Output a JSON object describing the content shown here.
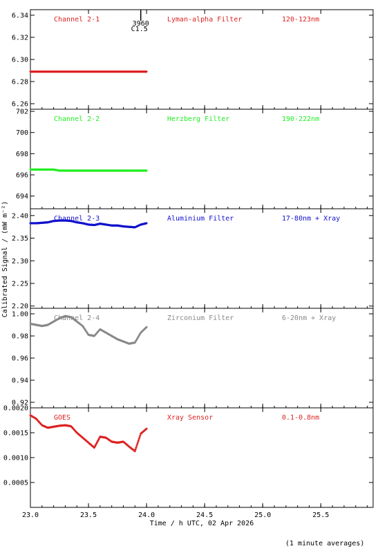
{
  "chart_data": [
    {
      "type": "scatter",
      "panel_labels": [
        "Channel 2-1",
        "Lyman-alpha Filter",
        "120-123nm"
      ],
      "color": "#dd2222",
      "ylim": [
        6.255,
        6.345
      ],
      "yticks": [
        6.26,
        6.28,
        6.3,
        6.32,
        6.34
      ],
      "ytick_labels": [
        "6.26",
        "6.28",
        "6.30",
        "6.32",
        "6.34"
      ],
      "flare_marker": {
        "x": 23.95,
        "labels": [
          "3960",
          "C1.5"
        ]
      },
      "series": [
        {
          "x": [
            23.0,
            23.05,
            23.1,
            23.15,
            23.2,
            23.25,
            23.3,
            23.35,
            23.4,
            23.45,
            23.5,
            23.55,
            23.6,
            23.65,
            23.7,
            23.75,
            23.8,
            23.85,
            23.9,
            23.95,
            24.0
          ],
          "values": [
            6.289,
            6.289,
            6.289,
            6.289,
            6.289,
            6.289,
            6.289,
            6.289,
            6.289,
            6.289,
            6.289,
            6.289,
            6.289,
            6.289,
            6.289,
            6.289,
            6.289,
            6.289,
            6.289,
            6.289,
            6.289
          ]
        }
      ]
    },
    {
      "type": "scatter",
      "panel_labels": [
        "Channel 2-2",
        "Herzberg Filter",
        "190-222nm"
      ],
      "color": "#22ee22",
      "ylim": [
        692.8,
        702.2
      ],
      "yticks": [
        694,
        696,
        698,
        700,
        702
      ],
      "ytick_labels": [
        "694",
        "696",
        "698",
        "700",
        "702"
      ],
      "series": [
        {
          "x": [
            23.0,
            23.05,
            23.1,
            23.15,
            23.2,
            23.25,
            23.3,
            23.35,
            23.4,
            23.45,
            23.5,
            23.55,
            23.6,
            23.65,
            23.7,
            23.75,
            23.8,
            23.85,
            23.9,
            23.95,
            24.0
          ],
          "values": [
            696.5,
            696.5,
            696.5,
            696.5,
            696.5,
            696.4,
            696.4,
            696.4,
            696.4,
            696.4,
            696.4,
            696.4,
            696.4,
            696.4,
            696.4,
            696.4,
            696.4,
            696.4,
            696.4,
            696.4,
            696.4
          ]
        }
      ]
    },
    {
      "type": "scatter",
      "panel_labels": [
        "Channel 2-3",
        "Aluminium Filter",
        "17-80nm + Xray"
      ],
      "color": "#1111cc",
      "ylim": [
        2.195,
        2.415
      ],
      "yticks": [
        2.2,
        2.25,
        2.3,
        2.35,
        2.4
      ],
      "ytick_labels": [
        "2.20",
        "2.25",
        "2.30",
        "2.35",
        "2.40"
      ],
      "series": [
        {
          "x": [
            23.0,
            23.05,
            23.1,
            23.15,
            23.2,
            23.25,
            23.3,
            23.35,
            23.4,
            23.45,
            23.5,
            23.55,
            23.6,
            23.65,
            23.7,
            23.75,
            23.8,
            23.85,
            23.9,
            23.95,
            24.0
          ],
          "values": [
            2.383,
            2.383,
            2.384,
            2.385,
            2.388,
            2.389,
            2.389,
            2.388,
            2.385,
            2.383,
            2.38,
            2.379,
            2.382,
            2.38,
            2.378,
            2.378,
            2.376,
            2.375,
            2.374,
            2.38,
            2.383
          ]
        }
      ]
    },
    {
      "type": "scatter",
      "panel_labels": [
        "Channel 2-4",
        "Zirconium Filter",
        "6-20nm + Xray"
      ],
      "color": "#888888",
      "ylim": [
        0.915,
        1.005
      ],
      "yticks": [
        0.92,
        0.94,
        0.96,
        0.98,
        1.0
      ],
      "ytick_labels": [
        "0.92",
        "0.94",
        "0.96",
        "0.98",
        "1.00"
      ],
      "series": [
        {
          "x": [
            23.0,
            23.05,
            23.1,
            23.15,
            23.2,
            23.25,
            23.3,
            23.35,
            23.4,
            23.45,
            23.5,
            23.55,
            23.6,
            23.65,
            23.7,
            23.75,
            23.8,
            23.85,
            23.9,
            23.95,
            24.0
          ],
          "values": [
            0.991,
            0.99,
            0.989,
            0.99,
            0.993,
            0.996,
            0.998,
            0.997,
            0.993,
            0.989,
            0.981,
            0.98,
            0.986,
            0.983,
            0.98,
            0.977,
            0.975,
            0.973,
            0.974,
            0.983,
            0.988
          ]
        }
      ]
    },
    {
      "type": "scatter",
      "panel_labels": [
        "GOES",
        "Xray Sensor",
        "0.1-0.8nm"
      ],
      "color": "#dd2222",
      "ylim": [
        0.0,
        0.002
      ],
      "yticks": [
        0.0005,
        0.001,
        0.0015,
        0.002
      ],
      "ytick_labels": [
        "0.0005",
        "0.0010",
        "0.0015",
        "0.0020"
      ],
      "series": [
        {
          "x": [
            23.0,
            23.05,
            23.1,
            23.15,
            23.2,
            23.25,
            23.3,
            23.35,
            23.4,
            23.45,
            23.5,
            23.55,
            23.6,
            23.65,
            23.7,
            23.75,
            23.8,
            23.85,
            23.9,
            23.95,
            24.0
          ],
          "values": [
            0.00185,
            0.00178,
            0.00165,
            0.0016,
            0.00162,
            0.00164,
            0.00165,
            0.00163,
            0.0015,
            0.0014,
            0.0013,
            0.0012,
            0.00142,
            0.0014,
            0.00132,
            0.0013,
            0.00132,
            0.00122,
            0.00113,
            0.00148,
            0.00158
          ]
        }
      ]
    }
  ],
  "x_axis": {
    "xlim": [
      23.0,
      25.95
    ],
    "ticks": [
      23.0,
      23.5,
      24.0,
      24.5,
      25.0,
      25.5
    ],
    "tick_labels": [
      "23.0",
      "23.5",
      "24.0",
      "24.5",
      "25.0",
      "25.5"
    ],
    "xlabel": "Time / h UTC, 02 Apr 2026"
  },
  "ylabel": "Calibrated Signal / (mW m⁻²)",
  "footnote": "(1 minute averages)"
}
